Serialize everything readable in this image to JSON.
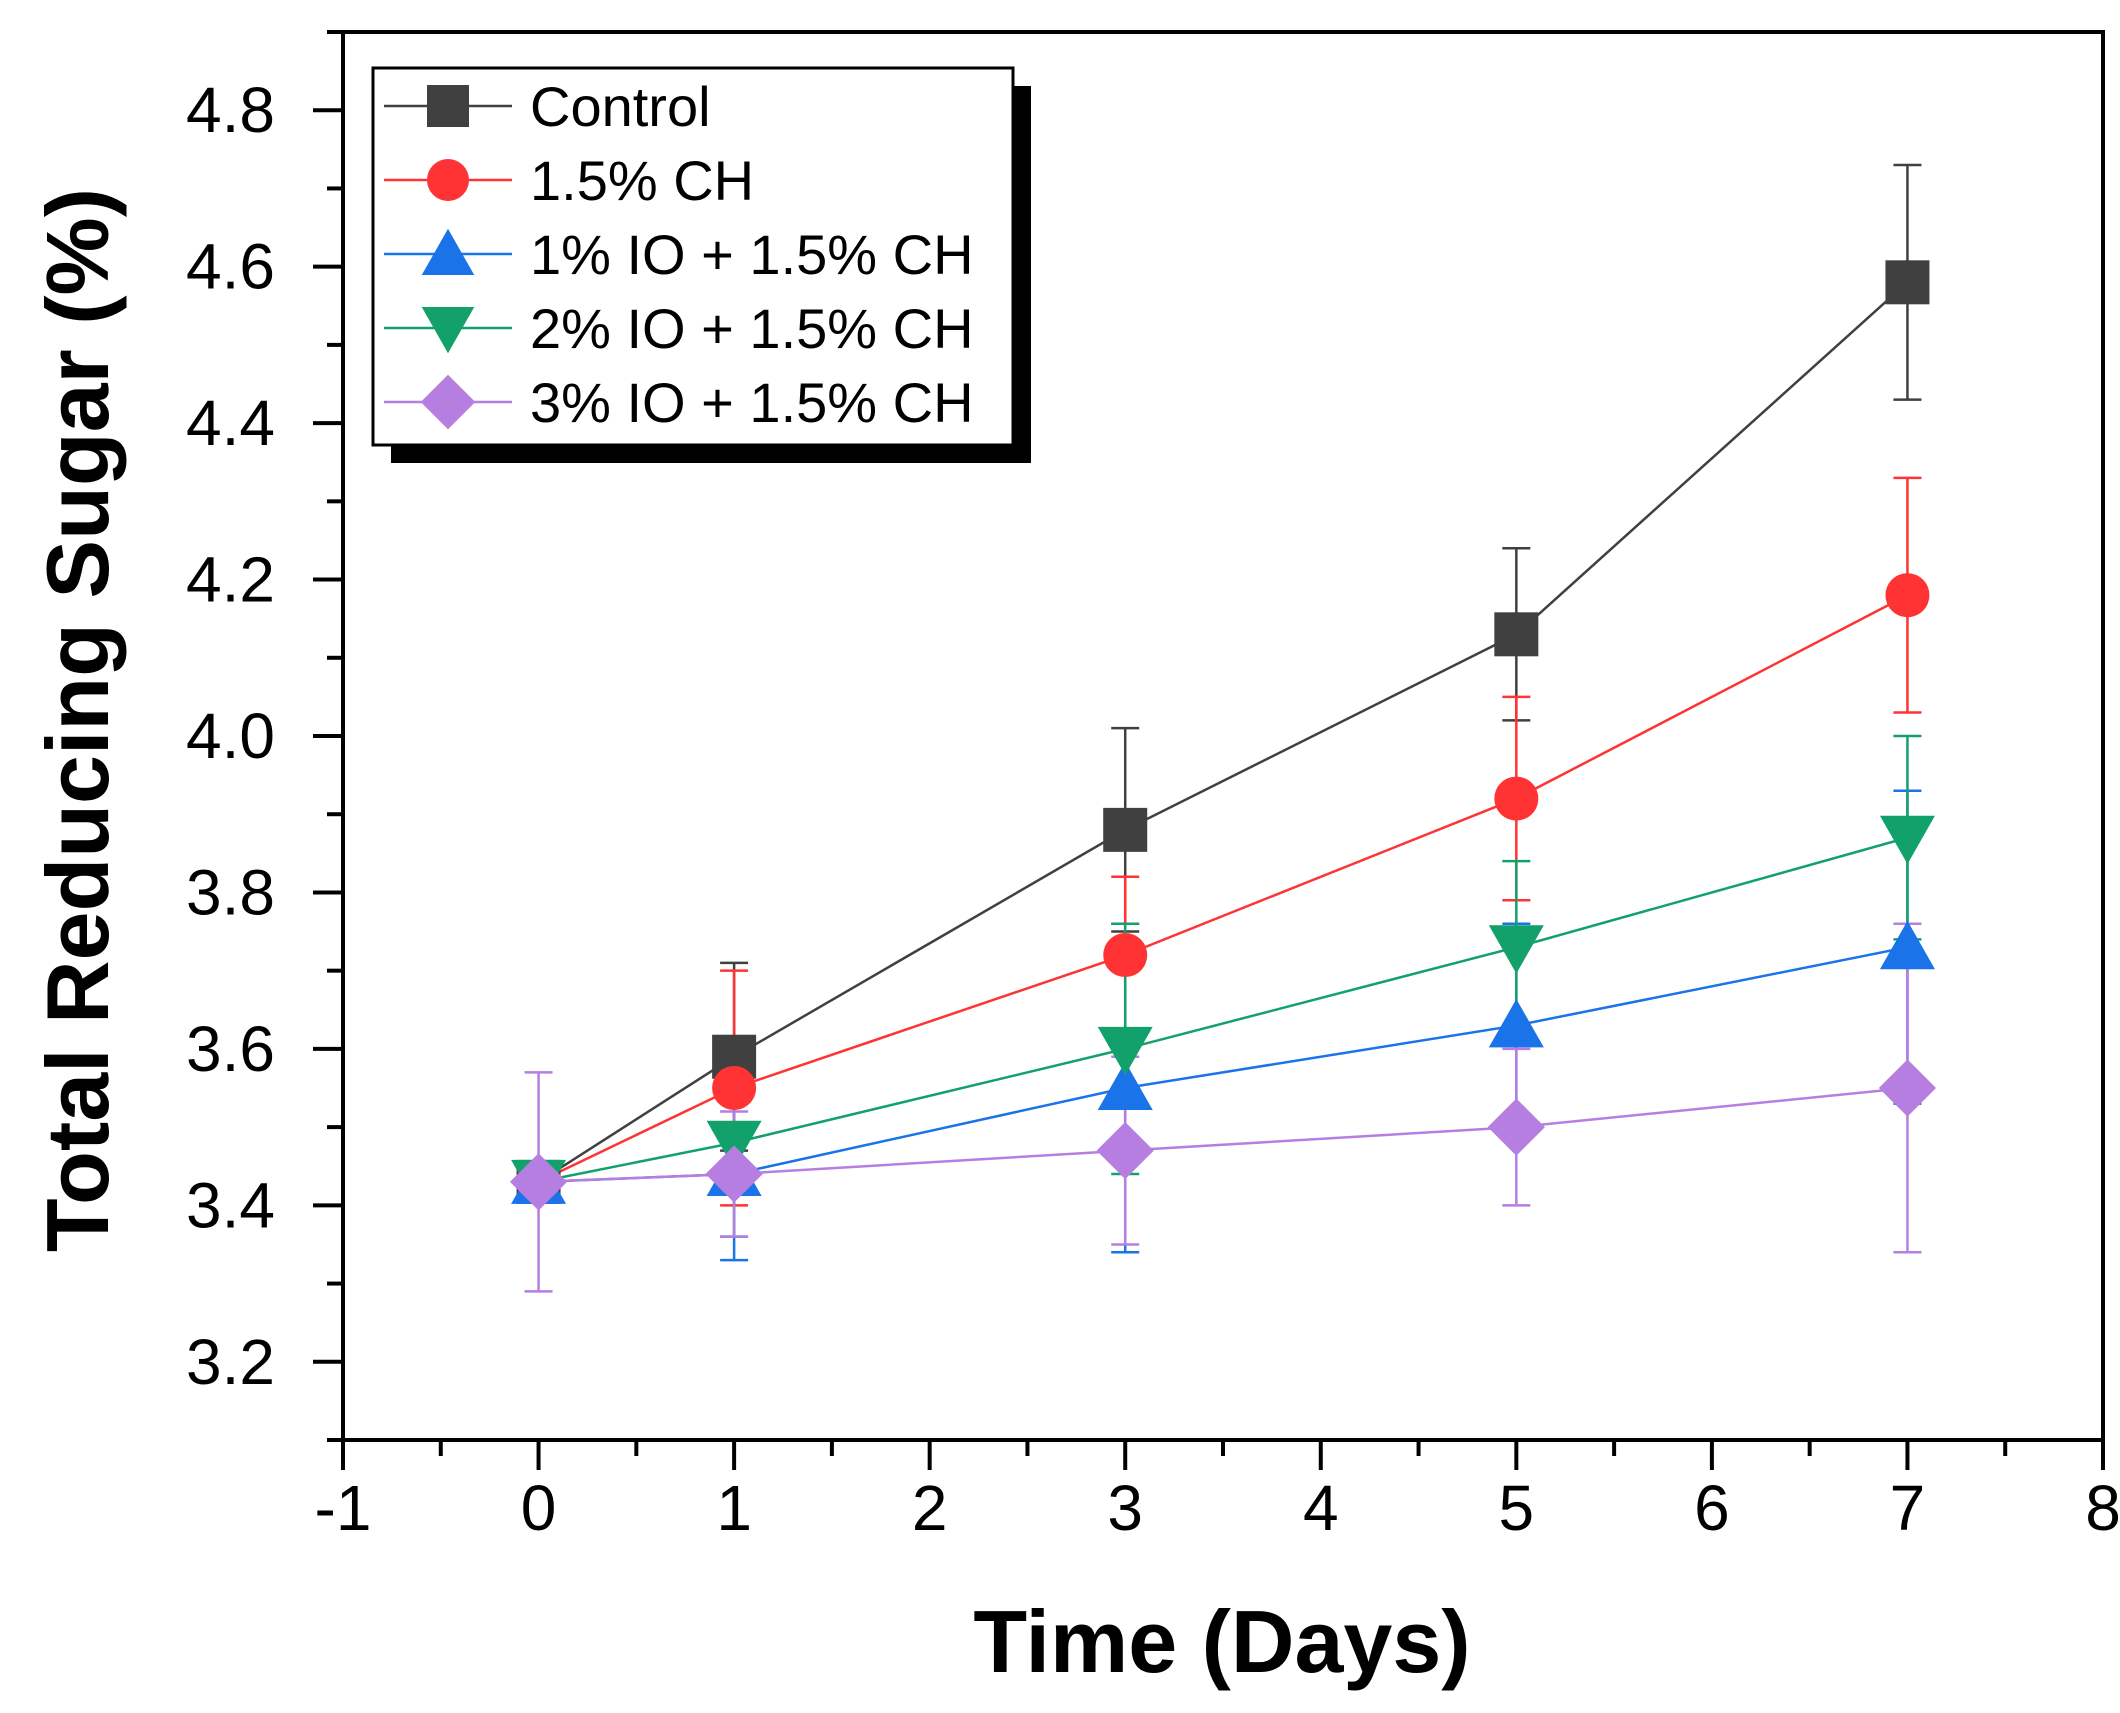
{
  "chart_data": {
    "type": "line",
    "title": "",
    "xlabel": "Time (Days)",
    "ylabel": "Total Reducing Sugar (%)",
    "xlim": [
      -1,
      8
    ],
    "ylim": [
      3.1,
      4.9
    ],
    "xticks": [
      -1,
      0,
      1,
      2,
      3,
      4,
      5,
      6,
      7,
      8
    ],
    "xtick_labels": [
      "-1",
      "0",
      "1",
      "2",
      "3",
      "4",
      "5",
      "6",
      "7",
      "8"
    ],
    "yticks": [
      3.2,
      3.4,
      3.6,
      3.8,
      4.0,
      4.2,
      4.4,
      4.6,
      4.8
    ],
    "ytick_labels": [
      "3.2",
      "3.4",
      "3.6",
      "3.8",
      "4.0",
      "4.2",
      "4.4",
      "4.6",
      "4.8"
    ],
    "grid": false,
    "legend_position": "top-left",
    "x": [
      0,
      1,
      3,
      5,
      7
    ],
    "series": [
      {
        "name": "Control",
        "color": "#404040",
        "marker": "square",
        "values": [
          3.43,
          3.59,
          3.88,
          4.13,
          4.58
        ],
        "errors": [
          0.01,
          0.12,
          0.13,
          0.11,
          0.15
        ]
      },
      {
        "name": "1.5% CH",
        "color": "#ff3333",
        "marker": "circle",
        "values": [
          3.43,
          3.55,
          3.72,
          3.92,
          4.18
        ],
        "errors": [
          0.01,
          0.15,
          0.1,
          0.13,
          0.15
        ]
      },
      {
        "name": "1% IO + 1.5% CH",
        "color": "#1a73e8",
        "marker": "triangle-up",
        "values": [
          3.43,
          3.44,
          3.55,
          3.63,
          3.73
        ],
        "errors": [
          0.01,
          0.11,
          0.21,
          0.13,
          0.2
        ]
      },
      {
        "name": "2% IO + 1.5% CH",
        "color": "#12a16b",
        "marker": "triangle-down",
        "values": [
          3.43,
          3.48,
          3.6,
          3.73,
          3.87
        ],
        "errors": [
          0.01,
          0.12,
          0.16,
          0.11,
          0.13
        ]
      },
      {
        "name": "3% IO + 1.5% CH",
        "color": "#b57ee0",
        "marker": "diamond",
        "values": [
          3.43,
          3.44,
          3.47,
          3.5,
          3.55
        ],
        "errors": [
          0.14,
          0.08,
          0.12,
          0.1,
          0.21
        ]
      }
    ]
  }
}
